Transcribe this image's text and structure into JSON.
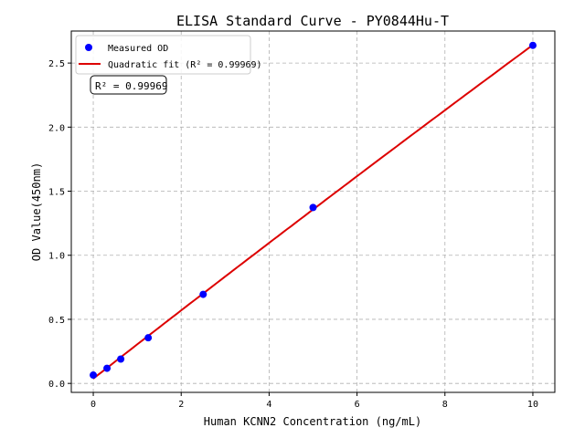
{
  "chart_data": {
    "type": "scatter",
    "title": "ELISA Standard Curve - PY0844Hu-T",
    "xlabel": "Human KCNN2 Concentration (ng/mL)",
    "ylabel": "OD Value(450nm)",
    "xlim": [
      -0.5,
      10.5
    ],
    "ylim": [
      -0.07,
      2.75
    ],
    "xticks": [
      0,
      2,
      4,
      6,
      8,
      10
    ],
    "xtick_labels": [
      "0",
      "2",
      "4",
      "6",
      "8",
      "10"
    ],
    "yticks": [
      0,
      0.5,
      1.0,
      1.5,
      2.0,
      2.5
    ],
    "ytick_labels": [
      "0.0",
      "0.5",
      "1.0",
      "1.5",
      "2.0",
      "2.5"
    ],
    "grid": true,
    "legend_placement": "top-left",
    "series": [
      {
        "name": "Measured OD",
        "kind": "scatter",
        "color": "#0000ff",
        "x": [
          0,
          0.3125,
          0.625,
          1.25,
          2.5,
          5,
          10
        ],
        "y": [
          0.065,
          0.118,
          0.19,
          0.356,
          0.695,
          1.373,
          2.638
        ]
      },
      {
        "name": "Quadratic fit (R² = 0.99969)",
        "kind": "line",
        "color": "#dd0000"
      }
    ],
    "annotation": "R² = 0.99969"
  }
}
